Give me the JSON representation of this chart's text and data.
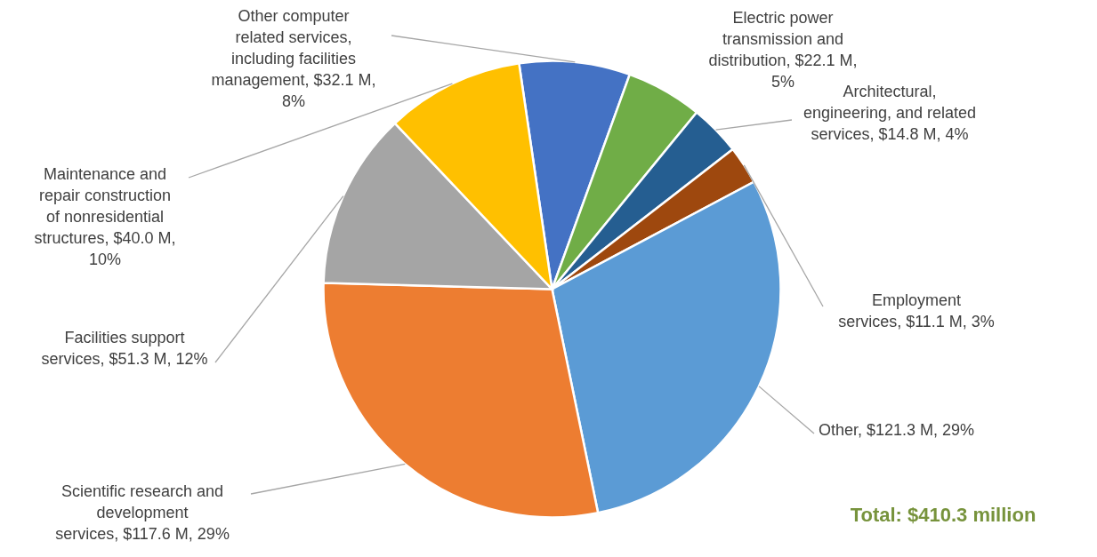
{
  "chart_data": {
    "type": "pie",
    "categories": [
      "Other computer related services, including facilities management",
      "Electric power transmission and distribution",
      "Architectural, engineering, and related services",
      "Employment services",
      "Other",
      "Scientific research and development services",
      "Facilities support services",
      "Maintenance and repair construction of nonresidential structures"
    ],
    "values": [
      32.1,
      22.1,
      14.8,
      11.1,
      121.3,
      117.6,
      51.3,
      40.0
    ],
    "value_labels": [
      "$32.1 M, 8%",
      "$22.1 M, 5%",
      "$14.8 M, 4%",
      "$11.1 M, 3%",
      "$121.3 M, 29%",
      "$117.6 M, 29%",
      "$51.3 M, 12%",
      "$40.0 M, 10%"
    ],
    "colors": [
      "#4472c4",
      "#70ad47",
      "#255e91",
      "#9e480e",
      "#5b9bd5",
      "#ed7d31",
      "#a5a5a5",
      "#ffc000"
    ],
    "annotations": [
      "Total: $410.3 million"
    ]
  }
}
